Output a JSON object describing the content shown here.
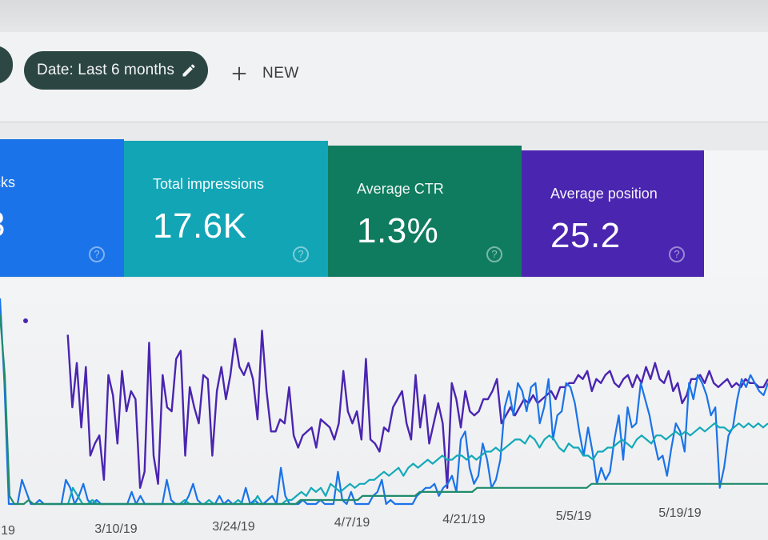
{
  "filter_bar": {
    "date_chip_label": "Date: Last 6 months",
    "new_label": "NEW"
  },
  "metrics": [
    {
      "title": "cks",
      "value": "3",
      "color": "#1a73e8"
    },
    {
      "title": "Total impressions",
      "value": "17.6K",
      "color": "#12a5b6"
    },
    {
      "title": "Average CTR",
      "value": "1.3%",
      "color": "#0f7c5f"
    },
    {
      "title": "Average position",
      "value": "25.2",
      "color": "#4a25b0"
    }
  ],
  "help_glyph": "?",
  "chart_data": {
    "type": "line",
    "x_tick_labels": [
      "19",
      "3/10/19",
      "3/24/19",
      "4/7/19",
      "4/21/19",
      "5/5/19",
      "5/19/19"
    ],
    "series": [
      {
        "color": "#4a25b0",
        "values": [
          null,
          null,
          null,
          null,
          null,
          null,
          null,
          null,
          null,
          null,
          null,
          null,
          null,
          null,
          null,
          210,
          120,
          175,
          95,
          170,
          60,
          75,
          85,
          30,
          160,
          135,
          75,
          165,
          115,
          140,
          130,
          20,
          40,
          200,
          60,
          25,
          160,
          120,
          115,
          180,
          190,
          60,
          145,
          120,
          100,
          160,
          155,
          60,
          140,
          170,
          130,
          160,
          205,
          170,
          160,
          175,
          155,
          105,
          215,
          140,
          90,
          90,
          105,
          100,
          145,
          85,
          70,
          85,
          90,
          95,
          70,
          105,
          100,
          95,
          80,
          100,
          165,
          115,
          100,
          115,
          80,
          180,
          80,
          75,
          65,
          95,
          90,
          120,
          130,
          140,
          100,
          80,
          160,
          95,
          135,
          75,
          100,
          125,
          100,
          20,
          150,
          130,
          95,
          140,
          115,
          110,
          115,
          130,
          130,
          140,
          155,
          100,
          110,
          120,
          110,
          120,
          130,
          125,
          135,
          125,
          130,
          135,
          140,
          130,
          145,
          145,
          150,
          150,
          160,
          155,
          165,
          140,
          155,
          150,
          160,
          165,
          150,
          145,
          155,
          160,
          145,
          160,
          150,
          170,
          155,
          175,
          155,
          150,
          165,
          140,
          150,
          125,
          135,
          155,
          155,
          160,
          150,
          165,
          150,
          145,
          150,
          155,
          145,
          150,
          145,
          155,
          150,
          150,
          145,
          145,
          155
        ]
      },
      {
        "color": "#1a73e8",
        "values": [
          255,
          150,
          0,
          0,
          0,
          30,
          15,
          0,
          0,
          5,
          0,
          0,
          0,
          0,
          0,
          30,
          20,
          0,
          10,
          25,
          5,
          0,
          5,
          0,
          0,
          0,
          0,
          0,
          0,
          0,
          15,
          0,
          10,
          0,
          0,
          0,
          0,
          0,
          30,
          5,
          0,
          0,
          0,
          10,
          25,
          5,
          0,
          0,
          0,
          0,
          10,
          0,
          5,
          0,
          0,
          0,
          20,
          0,
          5,
          0,
          0,
          5,
          10,
          0,
          45,
          10,
          0,
          0,
          0,
          5,
          0,
          0,
          0,
          5,
          0,
          0,
          0,
          40,
          5,
          0,
          15,
          0,
          0,
          0,
          0,
          10,
          15,
          30,
          0,
          5,
          0,
          0,
          0,
          0,
          0,
          10,
          15,
          20,
          20,
          25,
          10,
          20,
          25,
          35,
          15,
          80,
          90,
          45,
          25,
          35,
          75,
          55,
          20,
          30,
          55,
          120,
          140,
          110,
          150,
          140,
          115,
          145,
          150,
          100,
          120,
          155,
          80,
          110,
          115,
          150,
          145,
          125,
          90,
          60,
          95,
          65,
          25,
          45,
          30,
          40,
          80,
          110,
          55,
          120,
          95,
          100,
          150,
          130,
          110,
          80,
          55,
          60,
          35,
          70,
          100,
          90,
          65,
          150,
          130,
          160,
          150,
          135,
          110,
          120,
          20,
          45,
          85,
          95,
          130,
          155,
          145,
          160,
          150,
          140,
          135,
          150
        ]
      },
      {
        "color": "#13a9b8",
        "values": [
          null,
          null,
          null,
          null,
          null,
          null,
          null,
          null,
          null,
          null,
          0,
          0,
          0,
          0,
          0,
          20,
          10,
          0,
          0,
          5,
          0,
          0,
          0,
          0,
          0,
          0,
          0,
          0,
          0,
          0,
          0,
          0,
          0,
          0,
          0,
          0,
          0,
          0,
          5,
          0,
          0,
          0,
          0,
          5,
          0,
          0,
          0,
          0,
          0,
          5,
          0,
          0,
          0,
          10,
          0,
          0,
          0,
          0,
          0,
          5,
          5,
          10,
          15,
          10,
          20,
          15,
          20,
          10,
          25,
          20,
          15,
          20,
          25,
          20,
          25,
          25,
          30,
          30,
          35,
          40,
          35,
          40,
          45,
          35,
          45,
          50,
          45,
          50,
          55,
          50,
          55,
          60,
          55,
          55,
          60,
          60,
          55,
          60,
          55,
          60,
          65,
          65,
          70,
          65,
          70,
          75,
          80,
          80,
          75,
          85,
          80,
          70,
          80,
          85,
          80,
          70,
          65,
          75,
          70,
          70,
          60,
          60,
          55,
          65,
          65,
          70,
          70,
          75,
          80,
          75,
          70,
          80,
          85,
          80,
          75,
          85,
          85,
          80,
          85,
          90,
          85,
          90,
          85,
          90,
          95,
          90,
          95,
          100,
          95,
          95,
          90,
          95,
          100,
          95,
          100,
          95,
          100,
          95,
          100
        ]
      },
      {
        "color": "#1f8c6d",
        "values": [
          235,
          160,
          10,
          0,
          0,
          0,
          5,
          0,
          0,
          0,
          0,
          0,
          0,
          0,
          0,
          0,
          0,
          0,
          0,
          0,
          0,
          0,
          0,
          0,
          0,
          0,
          0,
          0,
          0,
          0,
          0,
          0,
          0,
          0,
          0,
          0,
          0,
          0,
          0,
          0,
          0,
          0,
          0,
          0,
          0,
          0,
          0,
          0,
          0,
          0,
          0,
          0,
          0,
          0,
          0,
          0,
          0,
          0,
          0,
          0,
          0,
          0,
          0,
          5,
          5,
          5,
          5,
          5,
          5,
          5,
          5,
          5,
          5,
          5,
          5,
          5,
          10,
          10,
          10,
          10,
          10,
          10,
          10,
          10,
          10,
          10,
          10,
          10,
          15,
          15,
          15,
          15,
          15,
          15,
          15,
          15,
          15,
          15,
          15,
          15,
          20,
          20,
          20,
          20,
          20,
          20,
          20,
          20,
          20,
          20,
          20,
          20,
          20,
          20,
          20,
          20,
          20,
          20,
          20,
          20,
          20,
          20,
          20,
          20,
          25,
          25,
          25,
          25,
          25,
          25,
          25,
          25,
          25,
          25,
          25,
          25,
          25,
          25,
          25,
          25,
          25,
          25,
          25,
          25,
          25,
          25,
          25,
          25,
          25,
          25,
          25,
          25,
          25,
          25,
          25,
          25,
          25,
          25,
          25,
          25,
          25,
          25
        ]
      }
    ],
    "ylim": [
      0,
      260
    ],
    "grid": false,
    "legend": "none"
  }
}
